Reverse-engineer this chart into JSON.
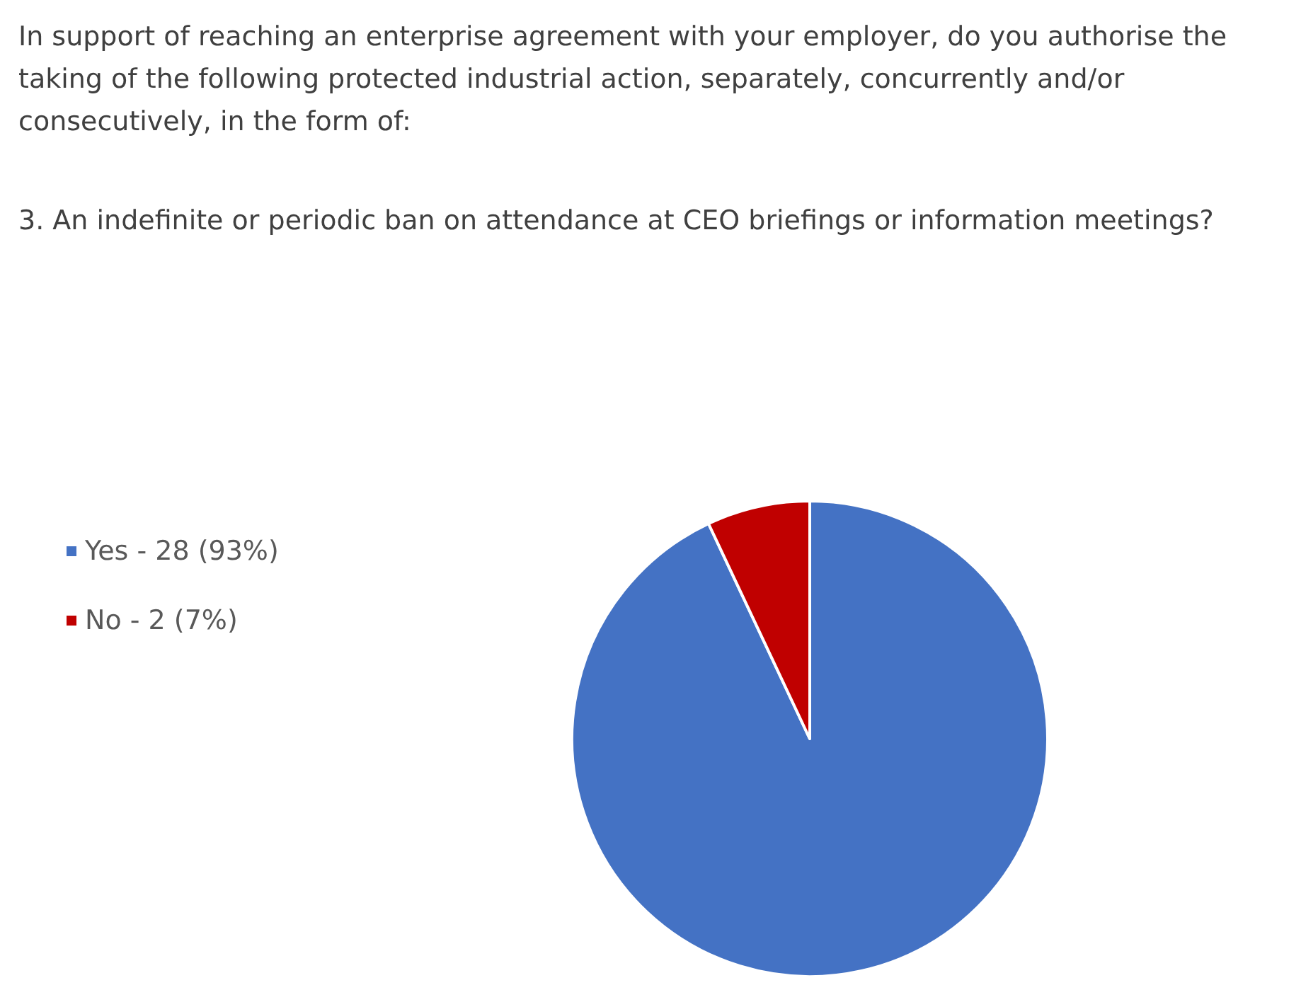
{
  "chart_data": {
    "type": "pie",
    "title": "In support of reaching an enterprise agreement with your employer, do you authorise the taking of the following protected industrial action, separately, concurrently and/or consecutively, in the form of:",
    "subtitle": "3. An indefinite or periodic ban on attendance at CEO briefings or information meetings?",
    "categories": [
      "Yes - 28 (93%)",
      "No - 2 (7%)"
    ],
    "values": [
      93,
      7
    ],
    "colors": [
      "#4472c4",
      "#c00000"
    ],
    "legend": "left"
  }
}
